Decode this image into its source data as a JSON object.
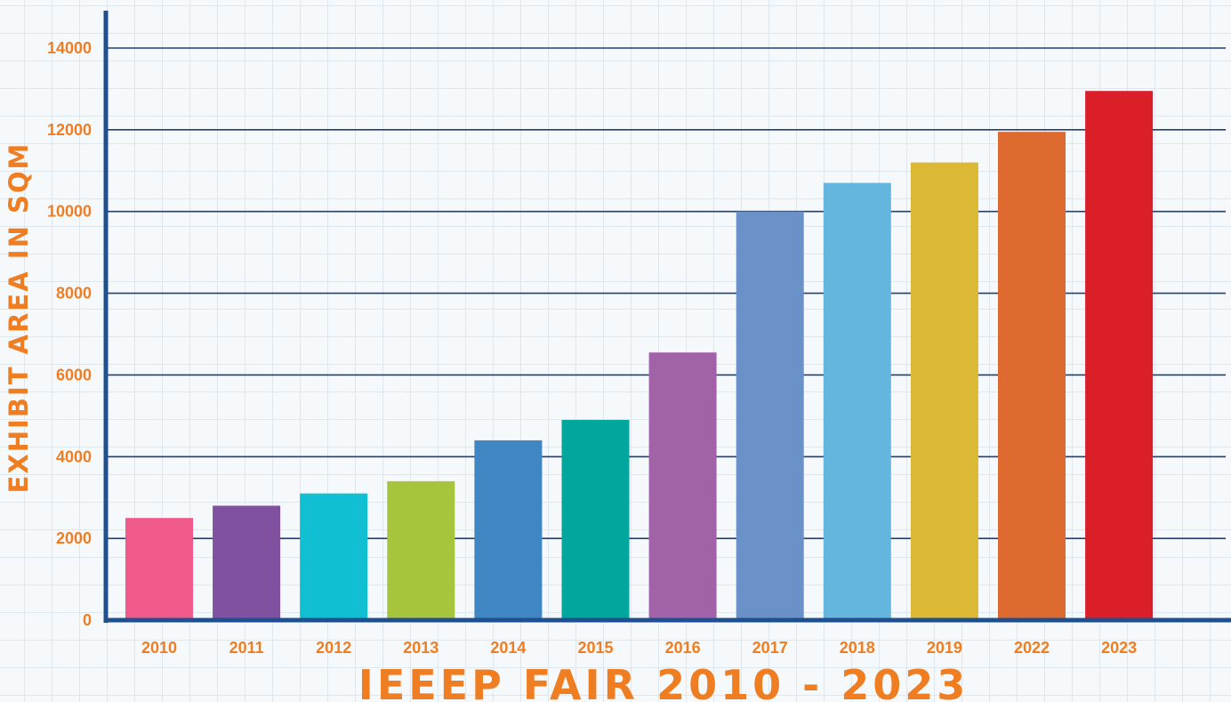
{
  "chart_data": {
    "type": "bar",
    "title": "IEEEP FAIR 2010 - 2023",
    "xlabel": "",
    "ylabel": "EXHIBIT AREA IN SQM",
    "categories": [
      "2010",
      "2011",
      "2012",
      "2013",
      "2014",
      "2015",
      "2016",
      "2017",
      "2018",
      "2019",
      "2022",
      "2023"
    ],
    "values": [
      2500,
      2800,
      3100,
      3400,
      4400,
      4900,
      6550,
      10000,
      10700,
      11200,
      11950,
      12950
    ],
    "bar_colors": [
      "#ef5a8b",
      "#7f519f",
      "#10bfd2",
      "#a7c43d",
      "#3f86c3",
      "#03a69c",
      "#a262a8",
      "#6b92c8",
      "#64b6de",
      "#dcb934",
      "#dd6b30",
      "#da1f29"
    ],
    "ylim": [
      0,
      14000
    ],
    "yticks": [
      "0",
      "2000",
      "4000",
      "6000",
      "8000",
      "10000",
      "12000",
      "14000"
    ],
    "grid": true,
    "legend": "none"
  }
}
